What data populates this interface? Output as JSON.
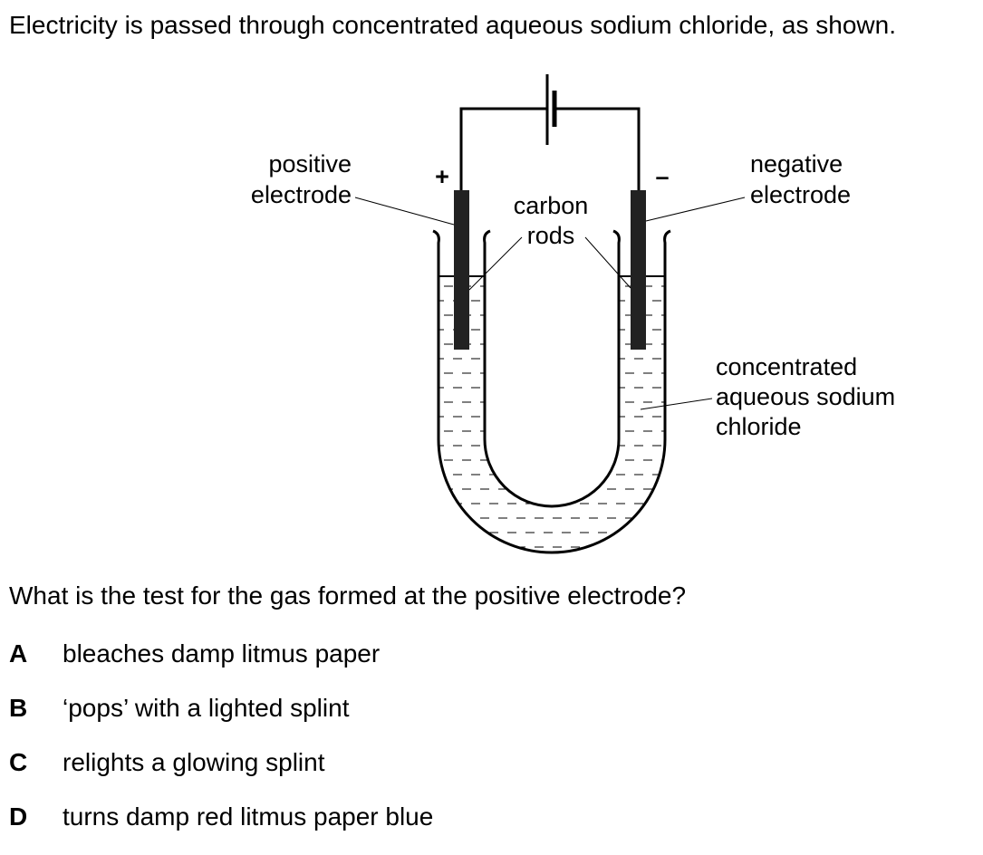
{
  "question": {
    "intro": "Electricity is passed through concentrated aqueous sodium chloride, as shown.",
    "prompt": "What is the test for the gas formed at the positive electrode?",
    "options": [
      {
        "letter": "A",
        "text": "bleaches damp litmus paper"
      },
      {
        "letter": "B",
        "text": "‘pops’ with a lighted splint"
      },
      {
        "letter": "C",
        "text": "relights a glowing splint"
      },
      {
        "letter": "D",
        "text": "turns damp red litmus paper blue"
      }
    ]
  },
  "diagram": {
    "labels": {
      "positive_line1": "positive",
      "positive_line2": "electrode",
      "negative_line1": "negative",
      "negative_line2": "electrode",
      "carbon_line1": "carbon",
      "carbon_line2": "rods",
      "solution_line1": "concentrated",
      "solution_line2": "aqueous sodium",
      "solution_line3": "chloride",
      "plus_sign": "+",
      "minus_sign": "–"
    }
  }
}
